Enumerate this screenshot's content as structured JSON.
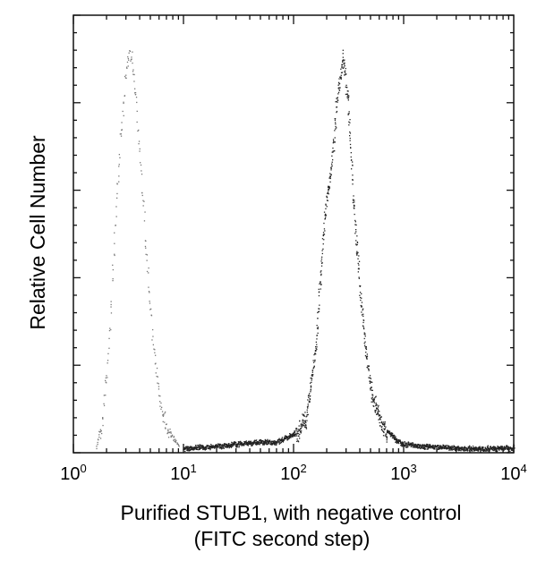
{
  "chart_data": {
    "type": "area",
    "xlabel": "Purified STUB1, with negative control",
    "xlabel_line2": "(FITC second step)",
    "ylabel": "Relative Cell Number",
    "x_scale": "log",
    "xlim": [
      1,
      10000
    ],
    "ylim": [
      0,
      100
    ],
    "grid": false,
    "x_ticks": [
      {
        "base": "10",
        "exp": "0",
        "value": 1
      },
      {
        "base": "10",
        "exp": "1",
        "value": 10
      },
      {
        "base": "10",
        "exp": "2",
        "value": 100
      },
      {
        "base": "10",
        "exp": "3",
        "value": 1000
      },
      {
        "base": "10",
        "exp": "4",
        "value": 10000
      }
    ],
    "series": [
      {
        "style": "dotted-light",
        "color": "#777777",
        "x": [
          1.6,
          1.8,
          2.0,
          2.2,
          2.4,
          2.6,
          2.8,
          3.0,
          3.2,
          3.4,
          3.7,
          4.0,
          4.4,
          4.9,
          5.5,
          6.2,
          7.0,
          8.0,
          9.0
        ],
        "y": [
          1,
          7,
          20,
          38,
          58,
          72,
          84,
          93,
          99,
          95,
          86,
          72,
          55,
          38,
          22,
          12,
          6,
          3,
          1
        ]
      },
      {
        "style": "dotted-dark",
        "color": "#222222",
        "x": [
          10,
          20,
          30,
          50,
          70,
          100,
          130,
          160,
          190,
          220,
          250,
          280,
          310,
          350,
          400,
          450,
          500,
          600,
          700,
          850,
          1000,
          1500,
          3000,
          10000
        ],
        "y": [
          0.5,
          1,
          1.5,
          2,
          2,
          4,
          9,
          28,
          58,
          70,
          88,
          96,
          86,
          60,
          40,
          25,
          16,
          9,
          5,
          2.5,
          1.5,
          1,
          0.5,
          0.5
        ]
      }
    ]
  }
}
